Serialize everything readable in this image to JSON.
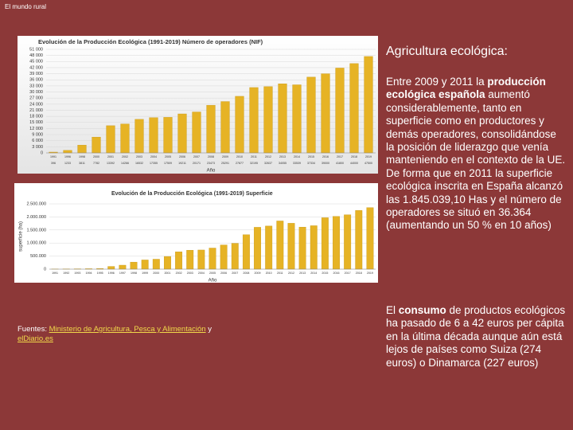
{
  "header": {
    "title": "El mundo rural"
  },
  "heading": "Agricultura ecológica:",
  "paragraphs": [
    [
      {
        "text": "Entre 2009 y 2011 la "
      },
      {
        "text": "producción ecológica española",
        "bold": true
      },
      {
        "text": " aumentó considerablemente, tanto en superficie como en productores y demás operadores, consolidándose la posición de liderazgo que venía manteniendo en el contexto de la UE. De forma que en 2011 la superficie ecológica inscrita en España alcanzó las 1.845.039,10 Has y el número de operadores se situó en 36.364 (aumentando un 50 % en 10 años)"
      }
    ],
    [
      {
        "text": "El "
      },
      {
        "text": "consumo",
        "bold": true
      },
      {
        "text": " de productos ecológicos ha pasado de 6 a 42 euros per cápita en la última década aunque aún está lejos de países como Suiza (274 euros) o Dinamarca (227 euros)"
      }
    ]
  ],
  "sources": [
    {
      "text": "Fuentes: "
    },
    {
      "text": "Ministerio de Agricultura, Pesca y Alimentación",
      "link": true
    },
    {
      "text": " y "
    },
    {
      "text": "elDiario.es",
      "link": true
    }
  ],
  "chart_data": [
    {
      "type": "bar",
      "title": "Evolución de la Producción Ecológica (1991-2019) Número de operadores (NIF)",
      "x_label": "Año",
      "color": "#e6b325",
      "categories": [
        "1991",
        "1996",
        "1998",
        "2000",
        "2001",
        "2002",
        "2003",
        "2004",
        "2005",
        "2006",
        "2007",
        "2008",
        "2009",
        "2010",
        "2011",
        "2012",
        "2013",
        "2014",
        "2015",
        "2016",
        "2017",
        "2018",
        "2019"
      ],
      "values": [
        396,
        1233,
        3811,
        7782,
        13392,
        14266,
        16532,
        17355,
        17509,
        19211,
        20171,
        23473,
        25291,
        27877,
        32195,
        32637,
        34055,
        33539,
        37334,
        39000,
        41800,
        44000,
        47500
      ],
      "ylim": [
        0,
        51000
      ],
      "yticks": [
        0,
        {
          "value": 3000,
          "label": "3 000"
        },
        {
          "value": 6000,
          "label": "6 000"
        },
        {
          "value": 9000,
          "label": "9 000"
        },
        {
          "value": 12000,
          "label": "12 000"
        },
        {
          "value": 15000,
          "label": "15 000"
        },
        {
          "value": 18000,
          "label": "18 000"
        },
        {
          "value": 21000,
          "label": "21 000"
        },
        {
          "value": 24000,
          "label": "24 000"
        },
        {
          "value": 27000,
          "label": "27 000"
        },
        {
          "value": 30000,
          "label": "30 000"
        },
        {
          "value": 33000,
          "label": "33 000"
        },
        {
          "value": 36000,
          "label": "36 000"
        },
        {
          "value": 39000,
          "label": "39 000"
        },
        {
          "value": 42000,
          "label": "42 000"
        },
        {
          "value": 45000,
          "label": "45 000"
        },
        {
          "value": 48000,
          "label": "48 000"
        },
        {
          "value": 51000,
          "label": "51 000"
        }
      ],
      "value_row": true
    },
    {
      "type": "bar",
      "title": "Evolución de la Producción Ecológica (1991-2019) Superficie",
      "x_label": "Año",
      "y_label": "superficie (ha)",
      "color": "#e6b325",
      "categories": [
        "1991",
        "1992",
        "1993",
        "1994",
        "1995",
        "1996",
        "1997",
        "1998",
        "1999",
        "2000",
        "2001",
        "2002",
        "2003",
        "2004",
        "2005",
        "2006",
        "2007",
        "2008",
        "2009",
        "2010",
        "2011",
        "2012",
        "2013",
        "2014",
        "2015",
        "2016",
        "2017",
        "2018",
        "2019"
      ],
      "values": [
        4235,
        7859,
        11675,
        17000,
        24078,
        103735,
        152105,
        269465,
        352164,
        380920,
        485079,
        665055,
        725254,
        733182,
        807569,
        926390,
        988323,
        1317752,
        1602868,
        1650866,
        1845039,
        1756548,
        1610129,
        1663189,
        1968570,
        2018802,
        2082173,
        2246475,
        2354916
      ],
      "ylim": [
        0,
        2500000
      ],
      "yticks": [
        0,
        {
          "value": 500000,
          "label": "500.000"
        },
        {
          "value": 1000000,
          "label": "1.000.000"
        },
        {
          "value": 1500000,
          "label": "1.500.000"
        },
        {
          "value": 2000000,
          "label": "2.000.000"
        },
        {
          "value": 2500000,
          "label": "2.500.000"
        }
      ],
      "value_row": false
    }
  ]
}
